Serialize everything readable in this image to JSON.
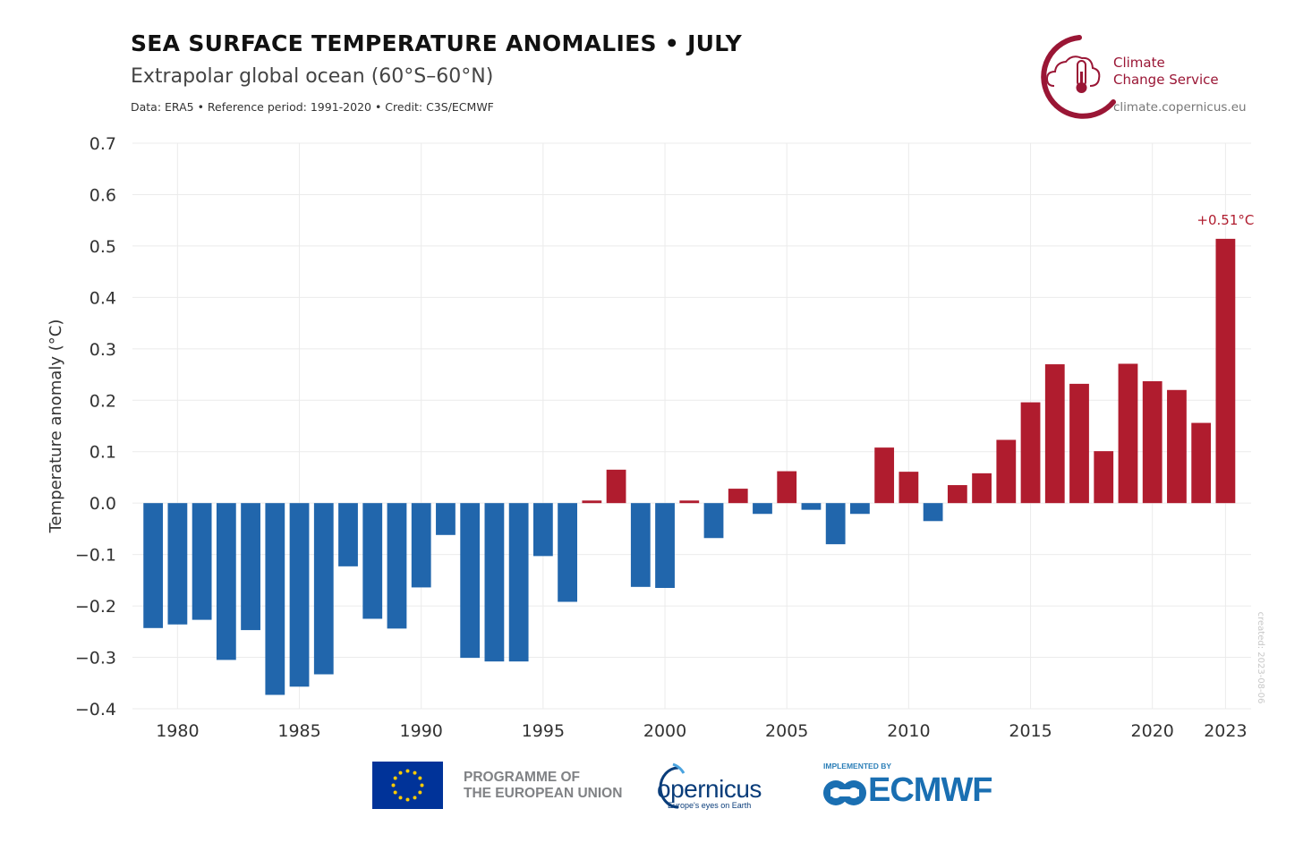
{
  "header": {
    "title": "SEA SURFACE TEMPERATURE ANOMALIES • JULY",
    "subtitle": "Extrapolar global ocean (60°S–60°N)",
    "credit": "Data: ERA5 • Reference period: 1991-2020 • Credit: C3S/ECMWF"
  },
  "logo": {
    "name_line1": "Climate",
    "name_line2": "Change Service",
    "url": "climate.copernicus.eu",
    "color": "#9a1635"
  },
  "footer": {
    "eu_line1": "PROGRAMME OF",
    "eu_line2": "THE EUROPEAN UNION",
    "copernicus_word": "opernicus",
    "copernicus_tagline": "Europe's eyes on Earth",
    "ecmwf_implemented": "IMPLEMENTED BY",
    "ecmwf_word": "ECMWF"
  },
  "created_note": "created: 2023-08-06",
  "colors": {
    "positive": "#b01c2e",
    "negative": "#2166ac",
    "grid": "#ebebeb"
  },
  "chart_data": {
    "type": "bar",
    "title": "SEA SURFACE TEMPERATURE ANOMALIES • JULY",
    "xlabel": "",
    "ylabel": "Temperature anomaly (°C)",
    "ylim": [
      -0.4,
      0.7
    ],
    "yticks": [
      0.7,
      0.6,
      0.5,
      0.4,
      0.3,
      0.2,
      0.1,
      0.0,
      -0.1,
      -0.2,
      -0.3,
      -0.4
    ],
    "ytick_labels": [
      "0.7",
      "0.6",
      "0.5",
      "0.4",
      "0.3",
      "0.2",
      "0.1",
      "0.0",
      "−0.1",
      "−0.2",
      "−0.3",
      "−0.4"
    ],
    "xticks": [
      1980,
      1985,
      1990,
      1995,
      2000,
      2005,
      2010,
      2015,
      2020,
      2023
    ],
    "xtick_labels": [
      "1980",
      "1985",
      "1990",
      "1995",
      "2000",
      "2005",
      "2010",
      "2015",
      "2020",
      "2023"
    ],
    "xlim": [
      1978.15,
      2024.05
    ],
    "grid": true,
    "categories": [
      1979,
      1980,
      1981,
      1982,
      1983,
      1984,
      1985,
      1986,
      1987,
      1988,
      1989,
      1990,
      1991,
      1992,
      1993,
      1994,
      1995,
      1996,
      1997,
      1998,
      1999,
      2000,
      2001,
      2002,
      2003,
      2004,
      2005,
      2006,
      2007,
      2008,
      2009,
      2010,
      2011,
      2012,
      2013,
      2014,
      2015,
      2016,
      2017,
      2018,
      2019,
      2020,
      2021,
      2022,
      2023
    ],
    "values": [
      -0.243,
      -0.236,
      -0.227,
      -0.305,
      -0.247,
      -0.373,
      -0.357,
      -0.333,
      -0.123,
      -0.225,
      -0.244,
      -0.164,
      -0.062,
      -0.301,
      -0.308,
      -0.308,
      -0.103,
      -0.192,
      0.005,
      0.065,
      -0.163,
      -0.165,
      0.005,
      -0.068,
      0.028,
      -0.021,
      0.062,
      -0.013,
      -0.08,
      -0.021,
      0.108,
      0.061,
      -0.035,
      0.035,
      0.058,
      0.123,
      0.196,
      0.27,
      0.232,
      0.101,
      0.271,
      0.237,
      0.22,
      0.156,
      0.514
    ],
    "annotation": {
      "year": 2023,
      "text": "+0.51°C"
    }
  }
}
